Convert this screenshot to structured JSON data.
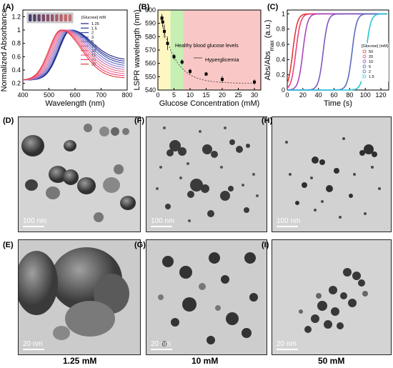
{
  "panels": {
    "A": {
      "label": "(A)"
    },
    "B": {
      "label": "(B)"
    },
    "C": {
      "label": "(C)"
    },
    "D": {
      "label": "(D)",
      "scale": "100 nm"
    },
    "E": {
      "label": "(E)",
      "scale": "20 nm"
    },
    "F": {
      "label": "(F)",
      "scale": "100 nm"
    },
    "G": {
      "label": "(G)",
      "scale": "20 nm"
    },
    "H": {
      "label": "(H)",
      "scale": "100 nm"
    },
    "I": {
      "label": "(I)",
      "scale": "20 nm"
    }
  },
  "concentrations": {
    "left": "1.25 mM",
    "middle": "10 mM",
    "right": "50 mM"
  },
  "chart_data": [
    {
      "type": "line",
      "panel": "A",
      "xlabel": "Wavelength (nm)",
      "ylabel": "Normalized Absorbance",
      "xlim": [
        400,
        800
      ],
      "ylim": [
        0.1,
        1.3
      ],
      "xticks": [
        400,
        500,
        600,
        700,
        800
      ],
      "yticks": [
        0.2,
        0.4,
        0.6,
        0.8,
        1.0,
        1.2
      ],
      "legend_title": "[Glucose] mM",
      "legend_position": "top-right",
      "series": [
        {
          "name": "1.25",
          "color": "#1a237e",
          "peak": 585,
          "tail": 0.55
        },
        {
          "name": "1.5",
          "color": "#283593",
          "peak": 582,
          "tail": 0.52
        },
        {
          "name": "2",
          "color": "#3949ab",
          "peak": 580,
          "tail": 0.49
        },
        {
          "name": "3",
          "color": "#5c6bc0",
          "peak": 575,
          "tail": 0.46
        },
        {
          "name": "5",
          "color": "#9575cd",
          "peak": 570,
          "tail": 0.43
        },
        {
          "name": "7.5",
          "color": "#ba68c8",
          "peak": 565,
          "tail": 0.4
        },
        {
          "name": "10",
          "color": "#e57373",
          "peak": 560,
          "tail": 0.37
        },
        {
          "name": "15",
          "color": "#f06292",
          "peak": 555,
          "tail": 0.34
        },
        {
          "name": "20",
          "color": "#ec407a",
          "peak": 550,
          "tail": 0.31
        },
        {
          "name": "30",
          "color": "#e53935",
          "peak": 546,
          "tail": 0.28
        }
      ]
    },
    {
      "type": "scatter",
      "panel": "B",
      "xlabel": "Glucose Concentration (mM)",
      "ylabel": "LSPR wavelength (nm)",
      "xlim": [
        0,
        32
      ],
      "ylim": [
        540,
        600
      ],
      "xticks": [
        0,
        5,
        10,
        15,
        20,
        25,
        30
      ],
      "yticks": [
        540,
        550,
        560,
        570,
        580,
        590,
        600
      ],
      "x": [
        1.25,
        1.5,
        2,
        3,
        5,
        7.5,
        10,
        15,
        20,
        30
      ],
      "y": [
        594,
        591,
        584,
        575,
        565,
        561,
        554,
        552,
        548,
        546
      ],
      "err": [
        3,
        4,
        5,
        5,
        2,
        2,
        2,
        1.5,
        2.5,
        2
      ],
      "regions": [
        {
          "from": 0,
          "to": 3.9,
          "color": "#fff7c2"
        },
        {
          "from": 3.9,
          "to": 7.8,
          "color": "#c6efb4"
        },
        {
          "from": 7.8,
          "to": 32,
          "color": "#f9c8c6"
        }
      ],
      "annotations": [
        "Healthy blood glucose levels",
        "Hyperglicemia"
      ]
    },
    {
      "type": "line",
      "panel": "C",
      "xlabel": "Time (s)",
      "ylabel": "Abs/Abs",
      "ylabel_sub": "max",
      "ylabel_unit": " (a.u.)",
      "xlim": [
        0,
        130
      ],
      "ylim": [
        0,
        1.05
      ],
      "xticks": [
        0,
        20,
        40,
        60,
        80,
        100,
        120
      ],
      "yticks": [
        0.0,
        0.2,
        0.4,
        0.6,
        0.8,
        1.0
      ],
      "legend_title": "[Glucose] (mM)",
      "legend_position": "center-right",
      "series": [
        {
          "name": "50",
          "color": "#e53935",
          "t50": 7
        },
        {
          "name": "20",
          "color": "#ec407a",
          "t50": 11
        },
        {
          "name": "10",
          "color": "#ab47bc",
          "t50": 20
        },
        {
          "name": "5",
          "color": "#7e57c2",
          "t50": 46
        },
        {
          "name": "2",
          "color": "#5c6bc0",
          "t50": 83
        },
        {
          "name": "1.5",
          "color": "#26c6da",
          "t50": 101
        }
      ]
    }
  ]
}
